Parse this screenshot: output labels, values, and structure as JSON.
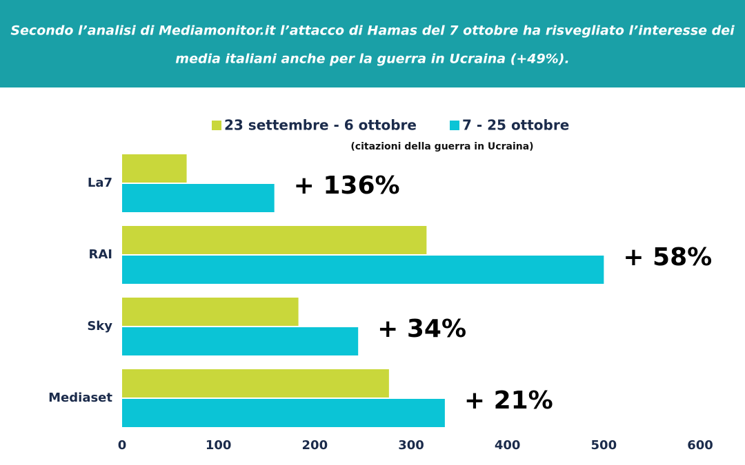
{
  "chart_data": {
    "type": "hbar",
    "title": "Secondo l’analisi di Mediamonitor.it l’attacco di Hamas del 7 ottobre ha risvegliato l’interesse dei",
    "title_line2": "media italiani anche per la guerra in Ucraina (+49%).",
    "subtitle": "(citazioni della guerra in Ucraina)",
    "categories": [
      "La7",
      "RAI",
      "Sky",
      "Mediaset"
    ],
    "series": [
      {
        "name": "23 settembre - 6 ottobre",
        "color": "#c9d73b",
        "values": [
          67,
          316,
          183,
          277
        ]
      },
      {
        "name": "7 - 25 ottobre",
        "color": "#0bc4d6",
        "values": [
          158,
          500,
          245,
          335
        ]
      }
    ],
    "annotations": [
      "+ 136%",
      "+ 58%",
      "+ 34%",
      "+ 21%"
    ],
    "xlim": [
      0,
      600
    ],
    "xticks": [
      0,
      100,
      200,
      300,
      400,
      500,
      600
    ],
    "grid": false
  }
}
